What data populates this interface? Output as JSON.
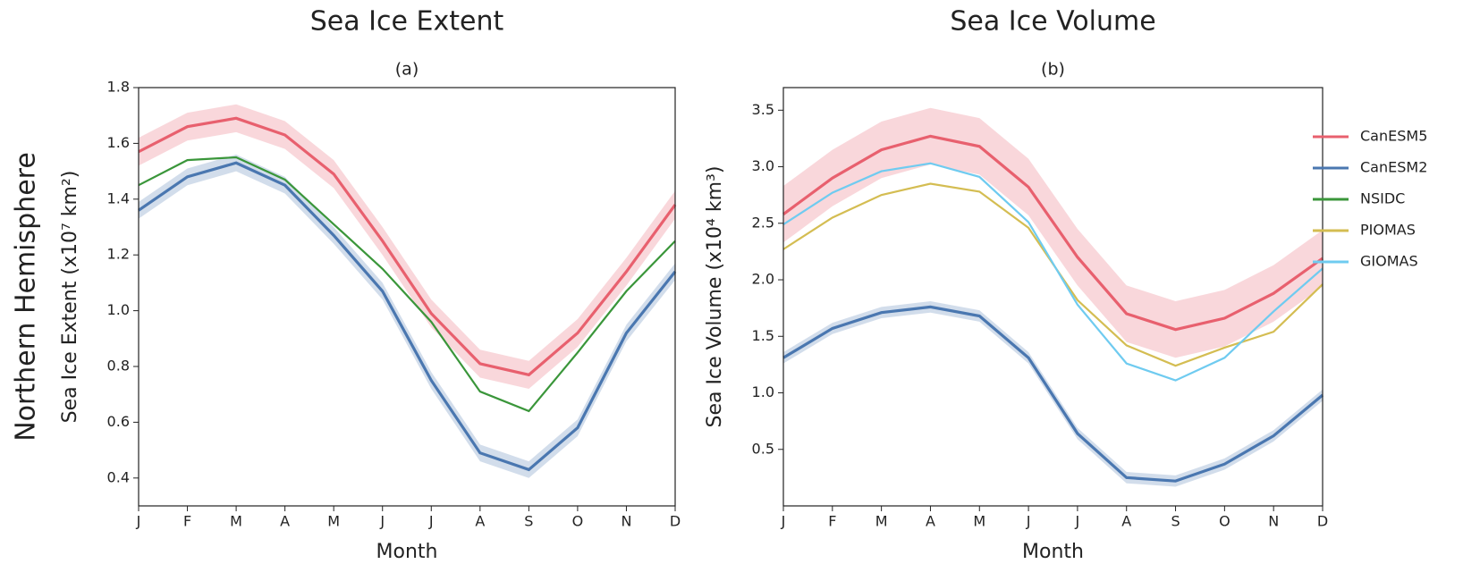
{
  "row_label": "Northern Hemisphere",
  "chart_data": [
    {
      "type": "line",
      "title": "Sea Ice Extent",
      "subtitle": "(a)",
      "xlabel": "Month",
      "ylabel": "Sea Ice Extent (x10⁷ km²)",
      "categories": [
        "J",
        "F",
        "M",
        "A",
        "M",
        "J",
        "J",
        "A",
        "S",
        "O",
        "N",
        "D"
      ],
      "ylim": [
        0.3,
        1.8
      ],
      "yticks": [
        0.4,
        0.6,
        0.8,
        {
          "value": 1,
          "label": "1.0"
        },
        1.2,
        1.4,
        1.6,
        1.8
      ],
      "series": [
        {
          "name": "CanESM5",
          "color": "#e8606e",
          "spread": 0.05,
          "values": [
            1.57,
            1.66,
            1.69,
            1.63,
            1.49,
            1.25,
            0.99,
            0.81,
            0.77,
            0.92,
            1.14,
            1.38
          ]
        },
        {
          "name": "CanESM2",
          "color": "#4a77b0",
          "spread": 0.03,
          "values": [
            1.36,
            1.48,
            1.53,
            1.45,
            1.27,
            1.07,
            0.75,
            0.49,
            0.43,
            0.58,
            0.92,
            1.14
          ]
        },
        {
          "name": "NSIDC",
          "color": "#3a963a",
          "values": [
            1.45,
            1.54,
            1.55,
            1.47,
            1.31,
            1.15,
            0.96,
            0.71,
            0.64,
            0.85,
            1.07,
            1.25
          ]
        }
      ]
    },
    {
      "type": "line",
      "title": "Sea Ice Volume",
      "subtitle": "(b)",
      "xlabel": "Month",
      "ylabel": "Sea Ice Volume (x10⁴ km³)",
      "categories": [
        "J",
        "F",
        "M",
        "A",
        "M",
        "J",
        "J",
        "A",
        "S",
        "O",
        "N",
        "D"
      ],
      "ylim": [
        0,
        3.7
      ],
      "yticks": [
        0.5,
        {
          "value": 1,
          "label": "1.0"
        },
        1.5,
        {
          "value": 2,
          "label": "2.0"
        },
        2.5,
        {
          "value": 3,
          "label": "3.0"
        },
        3.5
      ],
      "series": [
        {
          "name": "CanESM5",
          "color": "#e8606e",
          "spread": 0.25,
          "values": [
            2.58,
            2.9,
            3.15,
            3.27,
            3.18,
            2.82,
            2.2,
            1.7,
            1.56,
            1.66,
            1.88,
            2.19
          ]
        },
        {
          "name": "CanESM2",
          "color": "#4a77b0",
          "spread": 0.05,
          "values": [
            1.31,
            1.57,
            1.71,
            1.76,
            1.68,
            1.31,
            0.64,
            0.25,
            0.22,
            0.37,
            0.62,
            0.98
          ]
        },
        {
          "name": "PIOMAS",
          "color": "#d4bd52",
          "values": [
            2.27,
            2.55,
            2.75,
            2.85,
            2.78,
            2.46,
            1.82,
            1.42,
            1.24,
            1.4,
            1.54,
            1.96
          ]
        },
        {
          "name": "GIOMAS",
          "color": "#6fcbf0",
          "values": [
            2.49,
            2.77,
            2.96,
            3.03,
            2.91,
            2.51,
            1.78,
            1.26,
            1.11,
            1.31,
            1.72,
            2.1
          ]
        }
      ],
      "legend": [
        {
          "name": "CanESM5",
          "color": "#e8606e"
        },
        {
          "name": "CanESM2",
          "color": "#4a77b0"
        },
        {
          "name": "NSIDC",
          "color": "#3a963a"
        },
        {
          "name": "PIOMAS",
          "color": "#d4bd52"
        },
        {
          "name": "GIOMAS",
          "color": "#6fcbf0"
        }
      ]
    }
  ]
}
